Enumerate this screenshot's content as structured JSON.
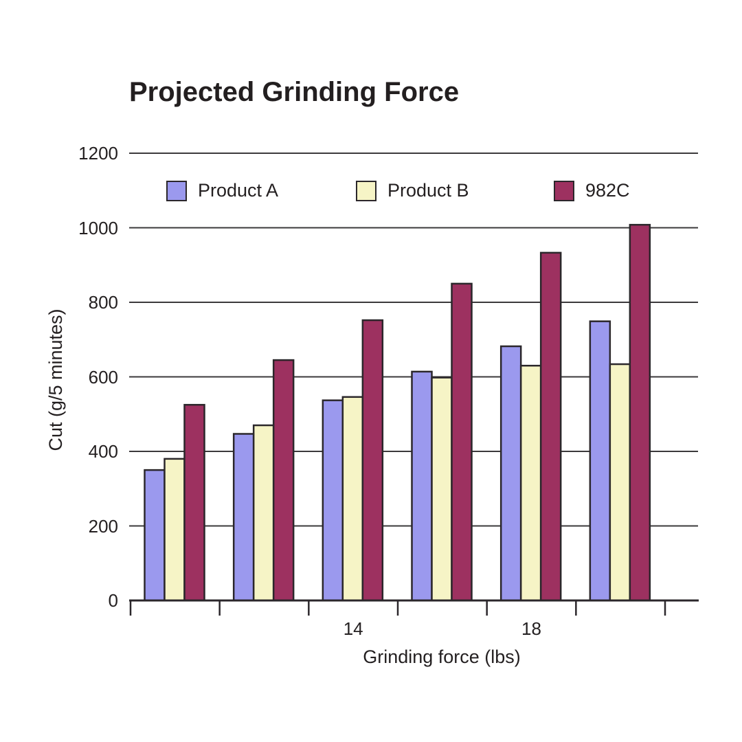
{
  "chart_data": {
    "type": "bar",
    "title": "Projected Grinding Force",
    "xlabel": "Grinding force (lbs)",
    "ylabel": "Cut (g/5 minutes)",
    "ylim": [
      0,
      1200
    ],
    "yticks": [
      0,
      200,
      400,
      600,
      800,
      1000,
      1200
    ],
    "grid": "horizontal",
    "legend_position": "top-inside",
    "categories": [
      "",
      "",
      "14",
      "",
      "18",
      ""
    ],
    "series": [
      {
        "name": "Product A",
        "color": "#9b99ee",
        "values": [
          350,
          447,
          537,
          614,
          682,
          749
        ]
      },
      {
        "name": "Product B",
        "color": "#f6f4c6",
        "values": [
          380,
          470,
          546,
          598,
          630,
          634
        ]
      },
      {
        "name": "982C",
        "color": "#9d3160",
        "values": [
          525,
          645,
          752,
          850,
          933,
          1008
        ]
      }
    ]
  },
  "colors": {
    "background": "#ffffff",
    "text": "#231f20",
    "gridline": "#3b393b",
    "axis": "#2b272b",
    "bar_border": "#2b272b"
  }
}
